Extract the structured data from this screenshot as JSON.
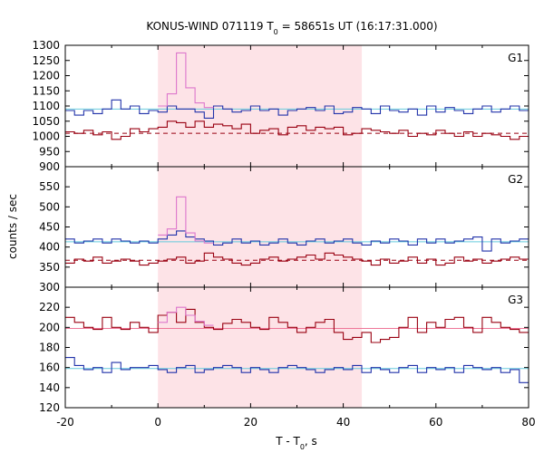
{
  "chart_data": {
    "type": "line",
    "title": "KONUS-WIND 071119 T",
    "title_sub": "0",
    "title_rest": " = 58651s UT (16:17:31.000)",
    "xlabel": "T - T",
    "xlabel_sub": "0",
    "xlabel_rest": ", s",
    "ylabel": "counts / sec",
    "xlim": [
      -20,
      80
    ],
    "x_ticks": [
      "-20",
      "0",
      "20",
      "40",
      "60",
      "80"
    ],
    "highlight_interval": [
      0,
      44
    ],
    "colors": {
      "blue": "#2233aa",
      "red": "#990011",
      "pink": "#dd77cc",
      "cyan": "#66ccdd",
      "shade": "#fde3e7",
      "rosefit": "#ee7799"
    },
    "panels": [
      {
        "label": "G1",
        "ylim": [
          900,
          1300
        ],
        "y_ticks": [
          "900",
          "950",
          "1000",
          "1050",
          "1100",
          "1150",
          "1200",
          "1250",
          "1300"
        ],
        "bin_edges": [
          -20,
          -18,
          -16,
          -14,
          -12,
          -10,
          -8,
          -6,
          -4,
          -2,
          0,
          2,
          4,
          6,
          8,
          10,
          12,
          14,
          16,
          18,
          20,
          22,
          24,
          26,
          28,
          30,
          32,
          34,
          36,
          38,
          40,
          42,
          44,
          46,
          48,
          50,
          52,
          54,
          56,
          58,
          60,
          62,
          64,
          66,
          68,
          70,
          72,
          74,
          76,
          78,
          80
        ],
        "series": [
          {
            "color_key": "blue",
            "values": [
              1085,
              1070,
              1085,
              1075,
              1090,
              1120,
              1090,
              1100,
              1075,
              1085,
              1080,
              1100,
              1090,
              1090,
              1080,
              1060,
              1100,
              1090,
              1080,
              1085,
              1100,
              1085,
              1090,
              1070,
              1085,
              1090,
              1095,
              1085,
              1100,
              1075,
              1080,
              1095,
              1090,
              1075,
              1100,
              1085,
              1080,
              1090,
              1070,
              1100,
              1080,
              1095,
              1085,
              1075,
              1090,
              1100,
              1080,
              1090,
              1100,
              1085
            ]
          },
          {
            "color_key": "red",
            "values": [
              1015,
              1010,
              1020,
              1005,
              1015,
              990,
              1000,
              1025,
              1015,
              1025,
              1030,
              1050,
              1045,
              1030,
              1050,
              1030,
              1040,
              1035,
              1025,
              1040,
              1010,
              1020,
              1025,
              1005,
              1030,
              1035,
              1020,
              1030,
              1025,
              1030,
              1005,
              1010,
              1025,
              1020,
              1015,
              1010,
              1020,
              1000,
              1010,
              1005,
              1020,
              1010,
              1000,
              1015,
              1000,
              1010,
              1005,
              1000,
              990,
              1000
            ]
          },
          {
            "color_key": "pink",
            "x_range": [
              0,
              12
            ],
            "values": [
              1100,
              1140,
              1275,
              1160,
              1110,
              1095
            ]
          }
        ],
        "fits": [
          {
            "color_key": "cyan",
            "value": 1090,
            "style": "solid"
          },
          {
            "color_key": "red",
            "value": 1010,
            "style": "dashed"
          }
        ]
      },
      {
        "label": "G2",
        "ylim": [
          300,
          600
        ],
        "y_ticks": [
          "300",
          "350",
          "400",
          "450",
          "500",
          "550"
        ],
        "bin_edges": [
          -20,
          -18,
          -16,
          -14,
          -12,
          -10,
          -8,
          -6,
          -4,
          -2,
          0,
          2,
          4,
          6,
          8,
          10,
          12,
          14,
          16,
          18,
          20,
          22,
          24,
          26,
          28,
          30,
          32,
          34,
          36,
          38,
          40,
          42,
          44,
          46,
          48,
          50,
          52,
          54,
          56,
          58,
          60,
          62,
          64,
          66,
          68,
          70,
          72,
          74,
          76,
          78,
          80
        ],
        "series": [
          {
            "color_key": "blue",
            "values": [
              420,
              410,
              415,
              420,
              410,
              420,
              415,
              410,
              415,
              410,
              420,
              430,
              440,
              425,
              420,
              415,
              405,
              410,
              420,
              410,
              415,
              405,
              410,
              420,
              410,
              405,
              415,
              420,
              410,
              415,
              420,
              410,
              405,
              415,
              410,
              420,
              415,
              405,
              420,
              410,
              420,
              410,
              415,
              420,
              425,
              390,
              420,
              410,
              415,
              420
            ]
          },
          {
            "color_key": "red",
            "values": [
              360,
              370,
              365,
              375,
              360,
              365,
              370,
              365,
              355,
              360,
              365,
              370,
              375,
              360,
              365,
              385,
              375,
              370,
              360,
              355,
              360,
              370,
              375,
              365,
              370,
              375,
              380,
              370,
              385,
              380,
              375,
              370,
              365,
              355,
              370,
              360,
              365,
              375,
              360,
              370,
              355,
              360,
              375,
              365,
              370,
              360,
              365,
              370,
              375,
              370
            ]
          },
          {
            "color_key": "pink",
            "x_range": [
              0,
              12
            ],
            "values": [
              430,
              445,
              525,
              435,
              415,
              410
            ]
          }
        ],
        "fits": [
          {
            "color_key": "cyan",
            "value": 413,
            "style": "solid"
          },
          {
            "color_key": "red",
            "value": 367,
            "style": "dashed"
          }
        ]
      },
      {
        "label": "G3",
        "ylim": [
          120,
          240
        ],
        "y_ticks": [
          "120",
          "140",
          "160",
          "180",
          "200",
          "220"
        ],
        "bin_edges": [
          -20,
          -18,
          -16,
          -14,
          -12,
          -10,
          -8,
          -6,
          -4,
          -2,
          0,
          2,
          4,
          6,
          8,
          10,
          12,
          14,
          16,
          18,
          20,
          22,
          24,
          26,
          28,
          30,
          32,
          34,
          36,
          38,
          40,
          42,
          44,
          46,
          48,
          50,
          52,
          54,
          56,
          58,
          60,
          62,
          64,
          66,
          68,
          70,
          72,
          74,
          76,
          78,
          80
        ],
        "series": [
          {
            "color_key": "blue",
            "values": [
              170,
              162,
              158,
              160,
              155,
              165,
              158,
              160,
              160,
              162,
              158,
              155,
              160,
              162,
              155,
              158,
              160,
              162,
              160,
              155,
              160,
              158,
              155,
              160,
              162,
              160,
              158,
              155,
              158,
              160,
              158,
              162,
              155,
              160,
              158,
              155,
              160,
              162,
              155,
              160,
              158,
              160,
              155,
              162,
              160,
              158,
              160,
              155,
              158,
              145
            ]
          },
          {
            "color_key": "red",
            "values": [
              210,
              205,
              200,
              198,
              210,
              200,
              198,
              205,
              200,
              195,
              212,
              215,
              205,
              218,
              205,
              200,
              198,
              204,
              208,
              205,
              200,
              198,
              210,
              205,
              200,
              195,
              200,
              205,
              208,
              195,
              188,
              190,
              195,
              185,
              188,
              190,
              200,
              210,
              195,
              205,
              200,
              208,
              210,
              200,
              195,
              210,
              205,
              200,
              198,
              195
            ]
          },
          {
            "color_key": "pink",
            "x_range": [
              0,
              12
            ],
            "values": [
              205,
              215,
              220,
              212,
              206,
              202
            ]
          }
        ],
        "fits": [
          {
            "color_key": "cyan",
            "value": 159,
            "style": "solid"
          },
          {
            "color_key": "rosefit",
            "value": 199,
            "style": "solid"
          }
        ]
      }
    ]
  }
}
